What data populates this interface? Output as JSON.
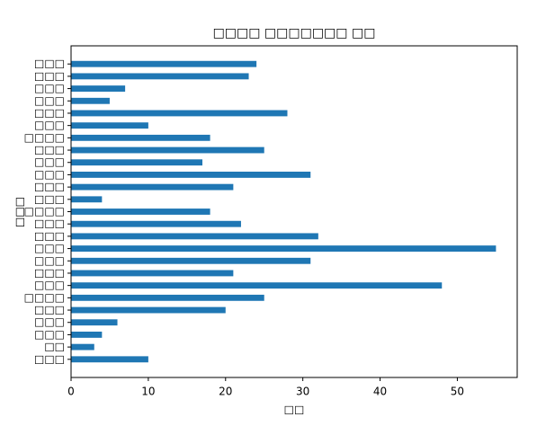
{
  "chart_data": {
    "type": "barh",
    "title": "□□□□ □□□□□□□ □□",
    "xlabel": "□□",
    "ylabel": "□□□",
    "categories": [
      "□□□",
      "□□",
      "□□□",
      "□□□",
      "□□□",
      "□□□□",
      "□□□",
      "□□□",
      "□□□",
      "□□□",
      "□□□",
      "□□□",
      "□□□□",
      "□□□",
      "□□□",
      "□□□",
      "□□□",
      "□□□",
      "□□□□",
      "□□□",
      "□□□",
      "□□□",
      "□□□",
      "□□□",
      "□□□"
    ],
    "values": [
      10,
      3,
      4,
      6,
      20,
      25,
      48,
      21,
      31,
      55,
      32,
      22,
      18,
      4,
      21,
      31,
      17,
      25,
      18,
      10,
      28,
      5,
      7,
      23,
      24
    ],
    "color": "#1f77b4",
    "xlim": [
      0,
      57.75
    ],
    "xticks": [
      0,
      10,
      20,
      30,
      40,
      50
    ]
  }
}
